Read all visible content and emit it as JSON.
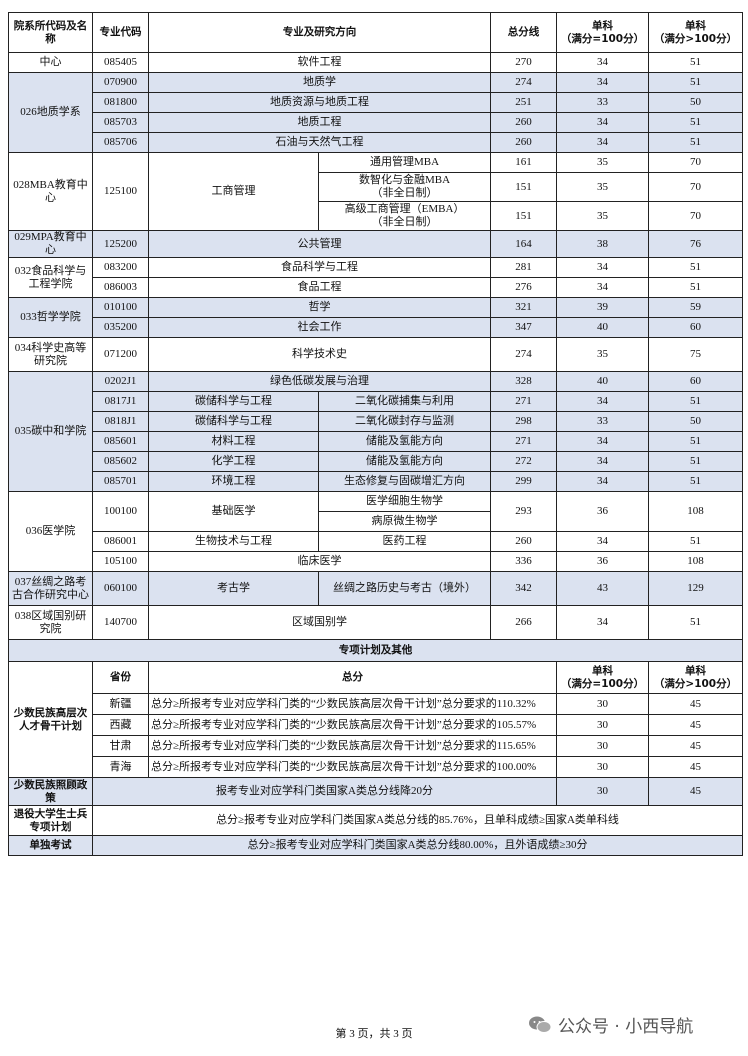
{
  "header": [
    "院系所代码及名称",
    "专业代码",
    "专业及研究方向",
    "总分线",
    "单科\n（满分=100分）",
    "单科\n（满分>100分）"
  ],
  "departments": [
    {
      "name": "中心",
      "programs": [
        {
          "code": "085405",
          "major": "软件工程",
          "total": 270,
          "s1": 34,
          "s2": 51
        }
      ]
    },
    {
      "name": "026地质学系",
      "programs": [
        {
          "code": "070900",
          "major": "地质学",
          "total": 274,
          "s1": 34,
          "s2": 51
        },
        {
          "code": "081800",
          "major": "地质资源与地质工程",
          "total": 251,
          "s1": 33,
          "s2": 50
        },
        {
          "code": "085703",
          "major": "地质工程",
          "total": 260,
          "s1": 34,
          "s2": 51
        },
        {
          "code": "085706",
          "major": "石油与天然气工程",
          "total": 260,
          "s1": 34,
          "s2": 51
        }
      ]
    },
    {
      "name": "028MBA教育中心",
      "programs": [
        {
          "code": "125100",
          "major": "工商管理",
          "directions": [
            {
              "name": "通用管理MBA",
              "total": 161,
              "s1": 35,
              "s2": 70
            },
            {
              "name": "数智化与金融MBA\n（非全日制）",
              "total": 151,
              "s1": 35,
              "s2": 70
            },
            {
              "name": "高级工商管理（EMBA）\n（非全日制）",
              "total": 151,
              "s1": 35,
              "s2": 70
            }
          ]
        }
      ]
    },
    {
      "name": "029MPA教育中心",
      "programs": [
        {
          "code": "125200",
          "major": "公共管理",
          "total": 164,
          "s1": 38,
          "s2": 76
        }
      ]
    },
    {
      "name": "032食品科学与工程学院",
      "programs": [
        {
          "code": "083200",
          "major": "食品科学与工程",
          "total": 281,
          "s1": 34,
          "s2": 51
        },
        {
          "code": "086003",
          "major": "食品工程",
          "total": 276,
          "s1": 34,
          "s2": 51
        }
      ]
    },
    {
      "name": "033哲学学院",
      "programs": [
        {
          "code": "010100",
          "major": "哲学",
          "total": 321,
          "s1": 39,
          "s2": 59
        },
        {
          "code": "035200",
          "major": "社会工作",
          "total": 347,
          "s1": 40,
          "s2": 60
        }
      ]
    },
    {
      "name": "034科学史高等研究院",
      "programs": [
        {
          "code": "071200",
          "major": "科学技术史",
          "total": 274,
          "s1": 35,
          "s2": 75
        }
      ]
    },
    {
      "name": "035碳中和学院",
      "programs": [
        {
          "code": "0202J1",
          "major": "绿色低碳发展与治理",
          "total": 328,
          "s1": 40,
          "s2": 60
        },
        {
          "code": "0817J1",
          "major": "碳储科学与工程",
          "direction": "二氧化碳捕集与利用",
          "total": 271,
          "s1": 34,
          "s2": 51
        },
        {
          "code": "0818J1",
          "major": "碳储科学与工程",
          "direction": "二氧化碳封存与监测",
          "total": 298,
          "s1": 33,
          "s2": 50
        },
        {
          "code": "085601",
          "major": "材料工程",
          "direction": "储能及氢能方向",
          "total": 271,
          "s1": 34,
          "s2": 51
        },
        {
          "code": "085602",
          "major": "化学工程",
          "direction": "储能及氢能方向",
          "total": 272,
          "s1": 34,
          "s2": 51
        },
        {
          "code": "085701",
          "major": "环境工程",
          "direction": "生态修复与固碳增汇方向",
          "total": 299,
          "s1": 34,
          "s2": 51
        }
      ]
    },
    {
      "name": "036医学院",
      "programs": [
        {
          "code": "100100",
          "major": "基础医学",
          "directions": [
            "医学细胞生物学",
            "病原微生物学"
          ],
          "total": 293,
          "s1": 36,
          "s2": 108
        },
        {
          "code": "086001",
          "major": "生物技术与工程",
          "direction": "医药工程",
          "total": 260,
          "s1": 34,
          "s2": 51
        },
        {
          "code": "105100",
          "major": "临床医学",
          "total": 336,
          "s1": 36,
          "s2": 108
        }
      ]
    },
    {
      "name": "037丝绸之路考古合作研究中心",
      "programs": [
        {
          "code": "060100",
          "major": "考古学",
          "direction": "丝绸之路历史与考古（境外）",
          "total": 342,
          "s1": 43,
          "s2": 129
        }
      ]
    },
    {
      "name": "038区域国别研究院",
      "programs": [
        {
          "code": "140700",
          "major": "区域国别学",
          "total": 266,
          "s1": 34,
          "s2": 51
        }
      ]
    }
  ],
  "special": {
    "title": "专项计划及其他",
    "header": [
      "省份",
      "总分",
      "单科\n（满分=100分）",
      "单科\n（满分>100分）"
    ],
    "plans": [
      {
        "name": "少数民族高层次人才骨干计划",
        "rows": [
          {
            "province": "新疆",
            "requirement": "总分≥所报考专业对应学科门类的“少数民族高层次骨干计划”总分要求的110.32%",
            "s1": 30,
            "s2": 45
          },
          {
            "province": "西藏",
            "requirement": "总分≥所报考专业对应学科门类的“少数民族高层次骨干计划”总分要求的105.57%",
            "s1": 30,
            "s2": 45
          },
          {
            "province": "甘肃",
            "requirement": "总分≥所报考专业对应学科门类的“少数民族高层次骨干计划”总分要求的115.65%",
            "s1": 30,
            "s2": 45
          },
          {
            "province": "青海",
            "requirement": "总分≥所报考专业对应学科门类的“少数民族高层次骨干计划”总分要求的100.00%",
            "s1": 30,
            "s2": 45
          }
        ]
      },
      {
        "name": "少数民族照顾政策",
        "requirement": "报考专业对应学科门类国家A类总分线降20分",
        "s1": 30,
        "s2": 45
      },
      {
        "name": "退役大学生士兵专项计划",
        "requirement": "总分≥报考专业对应学科门类国家A类总分线的85.76%，且单科成绩≥国家A类单科线"
      },
      {
        "name": "单独考试",
        "requirement": "总分≥报考专业对应学科门类国家A类总分线80.00%，且外语成绩≥30分"
      }
    ]
  },
  "footer": {
    "page": "第 3 页，共 3 页",
    "watermark": "公众号 · 小西导航"
  }
}
